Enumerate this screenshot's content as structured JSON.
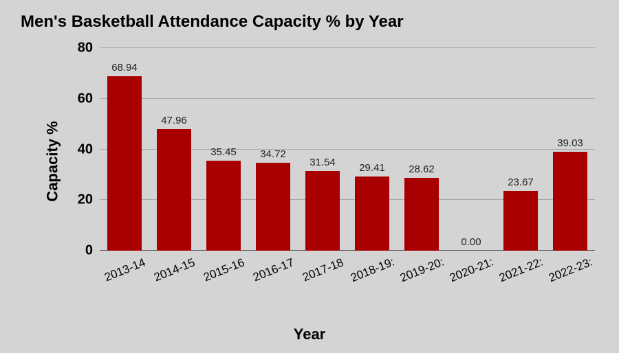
{
  "chart": {
    "type": "bar",
    "title": "Men's Basketball Attendance Capacity % by Year",
    "xlabel": "Year",
    "ylabel": "Capacity %",
    "background_color": "#d4d4d4",
    "bar_color": "#a80000",
    "grid_color": "#aaaaaa",
    "axis_color": "#555555",
    "text_color": "#000000",
    "title_fontsize": 24,
    "label_fontsize": 22,
    "tick_fontsize": 20,
    "value_fontsize": 15,
    "bar_width": 0.7,
    "ylim": [
      0,
      80
    ],
    "ytick_step": 20,
    "yticks": [
      0,
      20,
      40,
      60,
      80
    ],
    "categories": [
      "2013-14",
      "2014-15",
      "2015-16",
      "2016-17",
      "2017-18",
      "2018-19:",
      "2019-20:",
      "2020-21:",
      "2021-22:",
      "2022-23:"
    ],
    "values": [
      68.94,
      47.96,
      35.45,
      34.72,
      31.54,
      29.41,
      28.62,
      0.0,
      23.67,
      39.03
    ],
    "value_labels": [
      "68.94",
      "47.96",
      "35.45",
      "34.72",
      "31.54",
      "29.41",
      "28.62",
      "0.00",
      "23.67",
      "39.03"
    ]
  }
}
